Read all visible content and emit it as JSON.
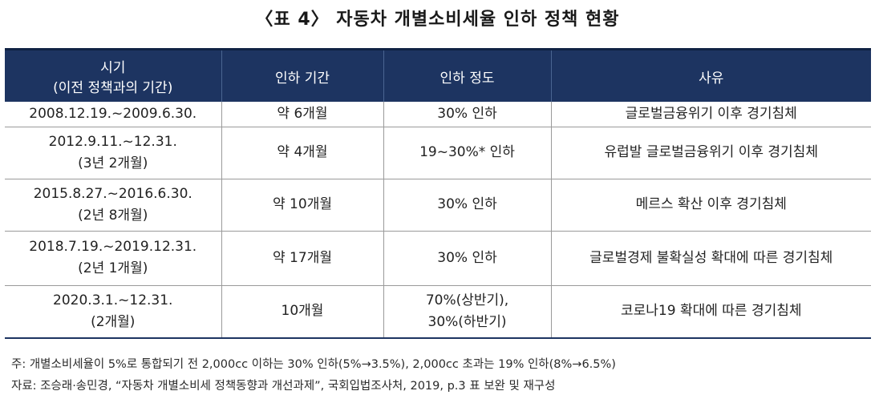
{
  "title": "〈표 4〉 자동차 개별소비세율 인하 정책 현황",
  "table": {
    "headers": {
      "period_line1": "시기",
      "period_line2": "(이전 정책과의 기간)",
      "duration": "인하 기간",
      "degree": "인하 정도",
      "reason": "사유"
    },
    "rows": [
      {
        "period_line1": "2008.12.19.~2009.6.30.",
        "period_line2": "",
        "duration": "약 6개월",
        "degree_line1": "30% 인하",
        "degree_line2": "",
        "reason": "글로벌금융위기 이후 경기침체"
      },
      {
        "period_line1": "2012.9.11.~12.31.",
        "period_line2": "(3년 2개월)",
        "duration": "약 4개월",
        "degree_line1": "19~30%* 인하",
        "degree_line2": "",
        "reason": "유럽발 글로벌금융위기 이후 경기침체"
      },
      {
        "period_line1": "2015.8.27.~2016.6.30.",
        "period_line2": "(2년 8개월)",
        "duration": "약 10개월",
        "degree_line1": "30% 인하",
        "degree_line2": "",
        "reason": "메르스 확산 이후 경기침체"
      },
      {
        "period_line1": "2018.7.19.~2019.12.31.",
        "period_line2": "(2년 1개월)",
        "duration": "약 17개월",
        "degree_line1": "30% 인하",
        "degree_line2": "",
        "reason": "글로벌경제 불확실성 확대에 따른 경기침체"
      },
      {
        "period_line1": "2020.3.1.~12.31.",
        "period_line2": "(2개월)",
        "duration": "10개월",
        "degree_line1": "70%(상반기),",
        "degree_line2": "30%(하반기)",
        "reason": "코로나19 확대에 따른 경기침체"
      }
    ]
  },
  "notes": {
    "footnote": "주: 개별소비세율이 5%로 통합되기 전 2,000cc 이하는 30% 인하(5%→3.5%), 2,000cc 초과는 19% 인하(8%→6.5%)",
    "source": "자료: 조승래·송민경, “자동차 개별소비세 정책동향과 개선과제”, 국회입법조사처, 2019, p.3 표 보완 및 재구성"
  },
  "colors": {
    "header_bg": "#1d3461",
    "header_text": "#ffffff",
    "border": "#9a9a9a"
  }
}
